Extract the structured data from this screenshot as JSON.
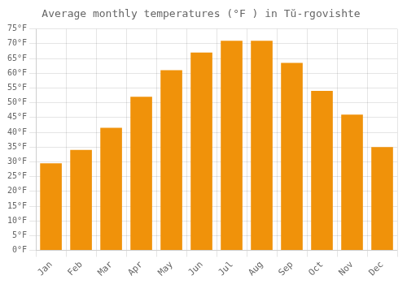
{
  "chart_data": {
    "type": "bar",
    "title": "Average monthly temperatures (°F ) in Tŭ-rgovishte",
    "categories": [
      "Jan",
      "Feb",
      "Mar",
      "Apr",
      "May",
      "Jun",
      "Jul",
      "Aug",
      "Sep",
      "Oct",
      "Nov",
      "Dec"
    ],
    "values": [
      29.5,
      34.0,
      41.5,
      52.0,
      61.0,
      67.0,
      71.0,
      71.0,
      63.5,
      54.0,
      46.0,
      35.0
    ],
    "color": "#F0920A",
    "ylim": [
      0,
      75
    ],
    "yticks": [
      {
        "value": 0,
        "label": "0°F"
      },
      {
        "value": 5,
        "label": "5°F"
      },
      {
        "value": 10,
        "label": "10°F"
      },
      {
        "value": 15,
        "label": "15°F"
      },
      {
        "value": 20,
        "label": "20°F"
      },
      {
        "value": 25,
        "label": "25°F"
      },
      {
        "value": 30,
        "label": "30°F"
      },
      {
        "value": 35,
        "label": "35°F"
      },
      {
        "value": 40,
        "label": "40°F"
      },
      {
        "value": 45,
        "label": "45°F"
      },
      {
        "value": 50,
        "label": "50°F"
      },
      {
        "value": 55,
        "label": "55°F"
      },
      {
        "value": 60,
        "label": "60°F"
      },
      {
        "value": 65,
        "label": "65°F"
      },
      {
        "value": 70,
        "label": "70°F"
      },
      {
        "value": 75,
        "label": "75°F"
      }
    ],
    "grid": true
  }
}
